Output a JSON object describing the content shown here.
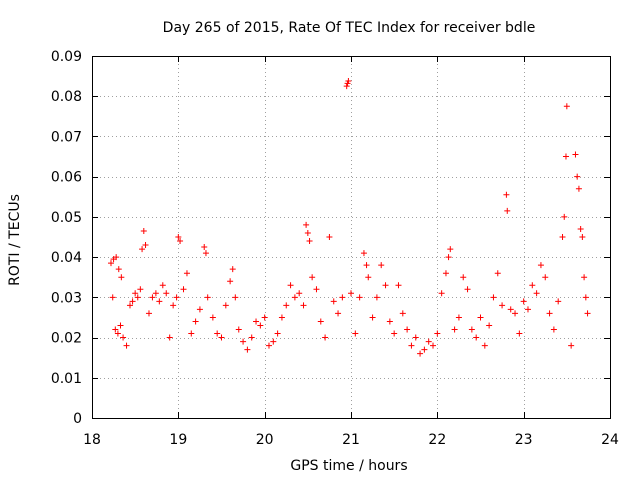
{
  "chart_data": {
    "type": "scatter",
    "title": "Day 265 of 2015, Rate Of TEC Index for receiver bdle",
    "xlabel": "GPS time / hours",
    "ylabel": "ROTI / TECUs",
    "xlim": [
      18,
      24
    ],
    "ylim": [
      0,
      0.09
    ],
    "grid": true,
    "marker": "+",
    "color": "#ff0000",
    "x_ticks": [
      18,
      19,
      20,
      21,
      22,
      23,
      24
    ],
    "x_tick_labels": [
      "18",
      "19",
      "20",
      "21",
      "22",
      "23",
      "24"
    ],
    "y_ticks": [
      0,
      0.01,
      0.02,
      0.03,
      0.04,
      0.05,
      0.06,
      0.07,
      0.08,
      0.09
    ],
    "y_tick_labels": [
      "0",
      "0.01",
      "0.02",
      "0.03",
      "0.04",
      "0.05",
      "0.06",
      "0.07",
      "0.08",
      "0.09"
    ],
    "series": [
      {
        "name": "ROTI",
        "points": [
          [
            18.22,
            0.0385
          ],
          [
            18.25,
            0.0395
          ],
          [
            18.28,
            0.04
          ],
          [
            18.31,
            0.037
          ],
          [
            18.34,
            0.035
          ],
          [
            18.24,
            0.03
          ],
          [
            18.27,
            0.022
          ],
          [
            18.3,
            0.021
          ],
          [
            18.33,
            0.023
          ],
          [
            18.36,
            0.02
          ],
          [
            18.4,
            0.018
          ],
          [
            18.44,
            0.028
          ],
          [
            18.47,
            0.029
          ],
          [
            18.5,
            0.031
          ],
          [
            18.53,
            0.03
          ],
          [
            18.56,
            0.032
          ],
          [
            18.58,
            0.042
          ],
          [
            18.6,
            0.0465
          ],
          [
            18.62,
            0.043
          ],
          [
            18.66,
            0.026
          ],
          [
            18.7,
            0.03
          ],
          [
            18.74,
            0.031
          ],
          [
            18.78,
            0.029
          ],
          [
            18.82,
            0.033
          ],
          [
            18.86,
            0.031
          ],
          [
            18.9,
            0.02
          ],
          [
            18.94,
            0.028
          ],
          [
            18.98,
            0.03
          ],
          [
            19.0,
            0.045
          ],
          [
            19.02,
            0.044
          ],
          [
            19.06,
            0.032
          ],
          [
            19.1,
            0.036
          ],
          [
            19.15,
            0.021
          ],
          [
            19.2,
            0.024
          ],
          [
            19.25,
            0.027
          ],
          [
            19.3,
            0.0425
          ],
          [
            19.32,
            0.041
          ],
          [
            19.34,
            0.03
          ],
          [
            19.4,
            0.025
          ],
          [
            19.45,
            0.021
          ],
          [
            19.5,
            0.02
          ],
          [
            19.55,
            0.028
          ],
          [
            19.6,
            0.034
          ],
          [
            19.63,
            0.037
          ],
          [
            19.66,
            0.03
          ],
          [
            19.7,
            0.022
          ],
          [
            19.75,
            0.019
          ],
          [
            19.8,
            0.017
          ],
          [
            19.85,
            0.02
          ],
          [
            19.9,
            0.024
          ],
          [
            19.95,
            0.023
          ],
          [
            20.0,
            0.025
          ],
          [
            20.05,
            0.018
          ],
          [
            20.1,
            0.019
          ],
          [
            20.15,
            0.021
          ],
          [
            20.2,
            0.025
          ],
          [
            20.25,
            0.028
          ],
          [
            20.3,
            0.033
          ],
          [
            20.35,
            0.03
          ],
          [
            20.4,
            0.031
          ],
          [
            20.45,
            0.028
          ],
          [
            20.48,
            0.048
          ],
          [
            20.5,
            0.046
          ],
          [
            20.52,
            0.044
          ],
          [
            20.55,
            0.035
          ],
          [
            20.6,
            0.032
          ],
          [
            20.65,
            0.024
          ],
          [
            20.7,
            0.02
          ],
          [
            20.75,
            0.045
          ],
          [
            20.8,
            0.029
          ],
          [
            20.85,
            0.026
          ],
          [
            20.9,
            0.03
          ],
          [
            20.95,
            0.0825
          ],
          [
            20.96,
            0.0832
          ],
          [
            20.97,
            0.0838
          ],
          [
            21.0,
            0.031
          ],
          [
            21.05,
            0.021
          ],
          [
            21.1,
            0.03
          ],
          [
            21.15,
            0.041
          ],
          [
            21.18,
            0.038
          ],
          [
            21.2,
            0.035
          ],
          [
            21.25,
            0.025
          ],
          [
            21.3,
            0.03
          ],
          [
            21.35,
            0.038
          ],
          [
            21.4,
            0.033
          ],
          [
            21.45,
            0.024
          ],
          [
            21.5,
            0.021
          ],
          [
            21.55,
            0.033
          ],
          [
            21.6,
            0.026
          ],
          [
            21.65,
            0.022
          ],
          [
            21.7,
            0.018
          ],
          [
            21.75,
            0.02
          ],
          [
            21.8,
            0.016
          ],
          [
            21.85,
            0.017
          ],
          [
            21.9,
            0.019
          ],
          [
            21.95,
            0.018
          ],
          [
            22.0,
            0.021
          ],
          [
            22.05,
            0.031
          ],
          [
            22.1,
            0.036
          ],
          [
            22.13,
            0.04
          ],
          [
            22.15,
            0.042
          ],
          [
            22.2,
            0.022
          ],
          [
            22.25,
            0.025
          ],
          [
            22.3,
            0.035
          ],
          [
            22.35,
            0.032
          ],
          [
            22.4,
            0.022
          ],
          [
            22.45,
            0.02
          ],
          [
            22.5,
            0.025
          ],
          [
            22.55,
            0.018
          ],
          [
            22.6,
            0.023
          ],
          [
            22.65,
            0.03
          ],
          [
            22.7,
            0.036
          ],
          [
            22.75,
            0.028
          ],
          [
            22.8,
            0.0555
          ],
          [
            22.81,
            0.0515
          ],
          [
            22.85,
            0.027
          ],
          [
            22.9,
            0.026
          ],
          [
            22.95,
            0.021
          ],
          [
            23.0,
            0.029
          ],
          [
            23.05,
            0.027
          ],
          [
            23.1,
            0.033
          ],
          [
            23.15,
            0.031
          ],
          [
            23.2,
            0.038
          ],
          [
            23.25,
            0.035
          ],
          [
            23.3,
            0.026
          ],
          [
            23.35,
            0.022
          ],
          [
            23.4,
            0.029
          ],
          [
            23.45,
            0.045
          ],
          [
            23.47,
            0.05
          ],
          [
            23.49,
            0.065
          ],
          [
            23.5,
            0.0775
          ],
          [
            23.55,
            0.018
          ],
          [
            23.6,
            0.0655
          ],
          [
            23.62,
            0.06
          ],
          [
            23.64,
            0.057
          ],
          [
            23.66,
            0.047
          ],
          [
            23.68,
            0.045
          ],
          [
            23.7,
            0.035
          ],
          [
            23.72,
            0.03
          ],
          [
            23.74,
            0.026
          ]
        ]
      }
    ]
  }
}
